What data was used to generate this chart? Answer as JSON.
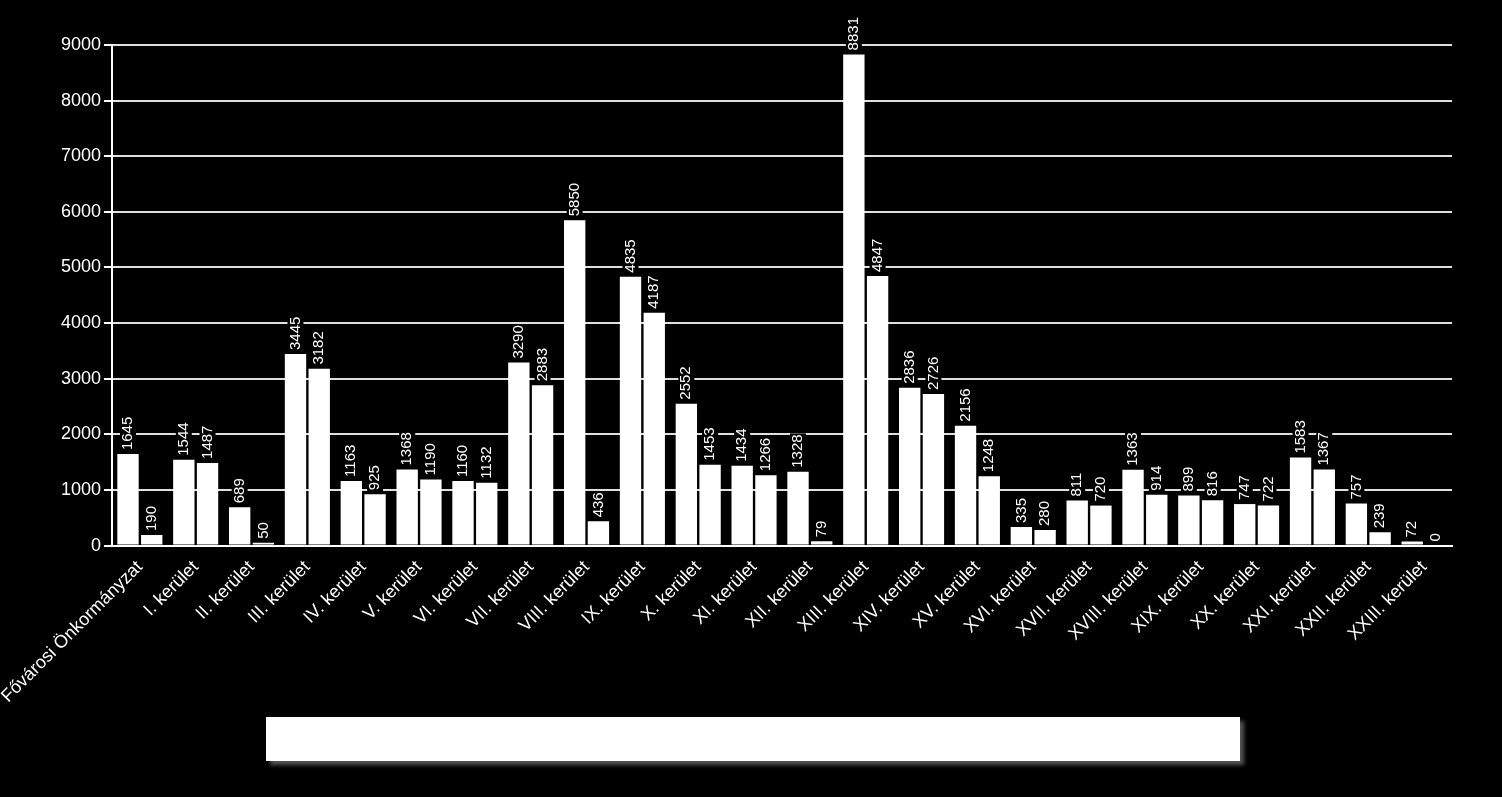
{
  "chart_data": {
    "type": "bar",
    "categories": [
      "Fővárosi Önkormányzat",
      "I. kerület",
      "II. kerület",
      "III. kerület",
      "IV. kerület",
      "V. kerület",
      "VI. kerület",
      "VII. kerület",
      "VIII. kerület",
      "IX. kerület",
      "X. kerület",
      "XI. kerület",
      "XII. kerület",
      "XIII. kerület",
      "XIV. kerület",
      "XV. kerület",
      "XVI. kerület",
      "XVII. kerület",
      "XVIII. kerület",
      "XIX. kerület",
      "XX. kerület",
      "XXI. kerület",
      "XXII. kerület",
      "XXIII. kerület"
    ],
    "series": [
      {
        "color": "#ffffff",
        "values": [
          1645,
          1544,
          689,
          3445,
          1163,
          1368,
          1160,
          3290,
          5850,
          4835,
          2552,
          1434,
          1328,
          8831,
          2836,
          2156,
          335,
          811,
          1363,
          899,
          747,
          1583,
          757,
          72
        ]
      },
      {
        "color": "#ffffff",
        "values": [
          190,
          1487,
          50,
          3182,
          925,
          1190,
          1132,
          2883,
          436,
          4187,
          1453,
          1266,
          79,
          4847,
          2726,
          1248,
          280,
          720,
          914,
          816,
          722,
          1367,
          239,
          0
        ]
      }
    ],
    "ylim": [
      0,
      9000
    ],
    "yticks": [
      0,
      1000,
      2000,
      3000,
      4000,
      5000,
      6000,
      7000,
      8000,
      9000
    ],
    "grid": "y",
    "data_labels": true,
    "legend": false
  }
}
